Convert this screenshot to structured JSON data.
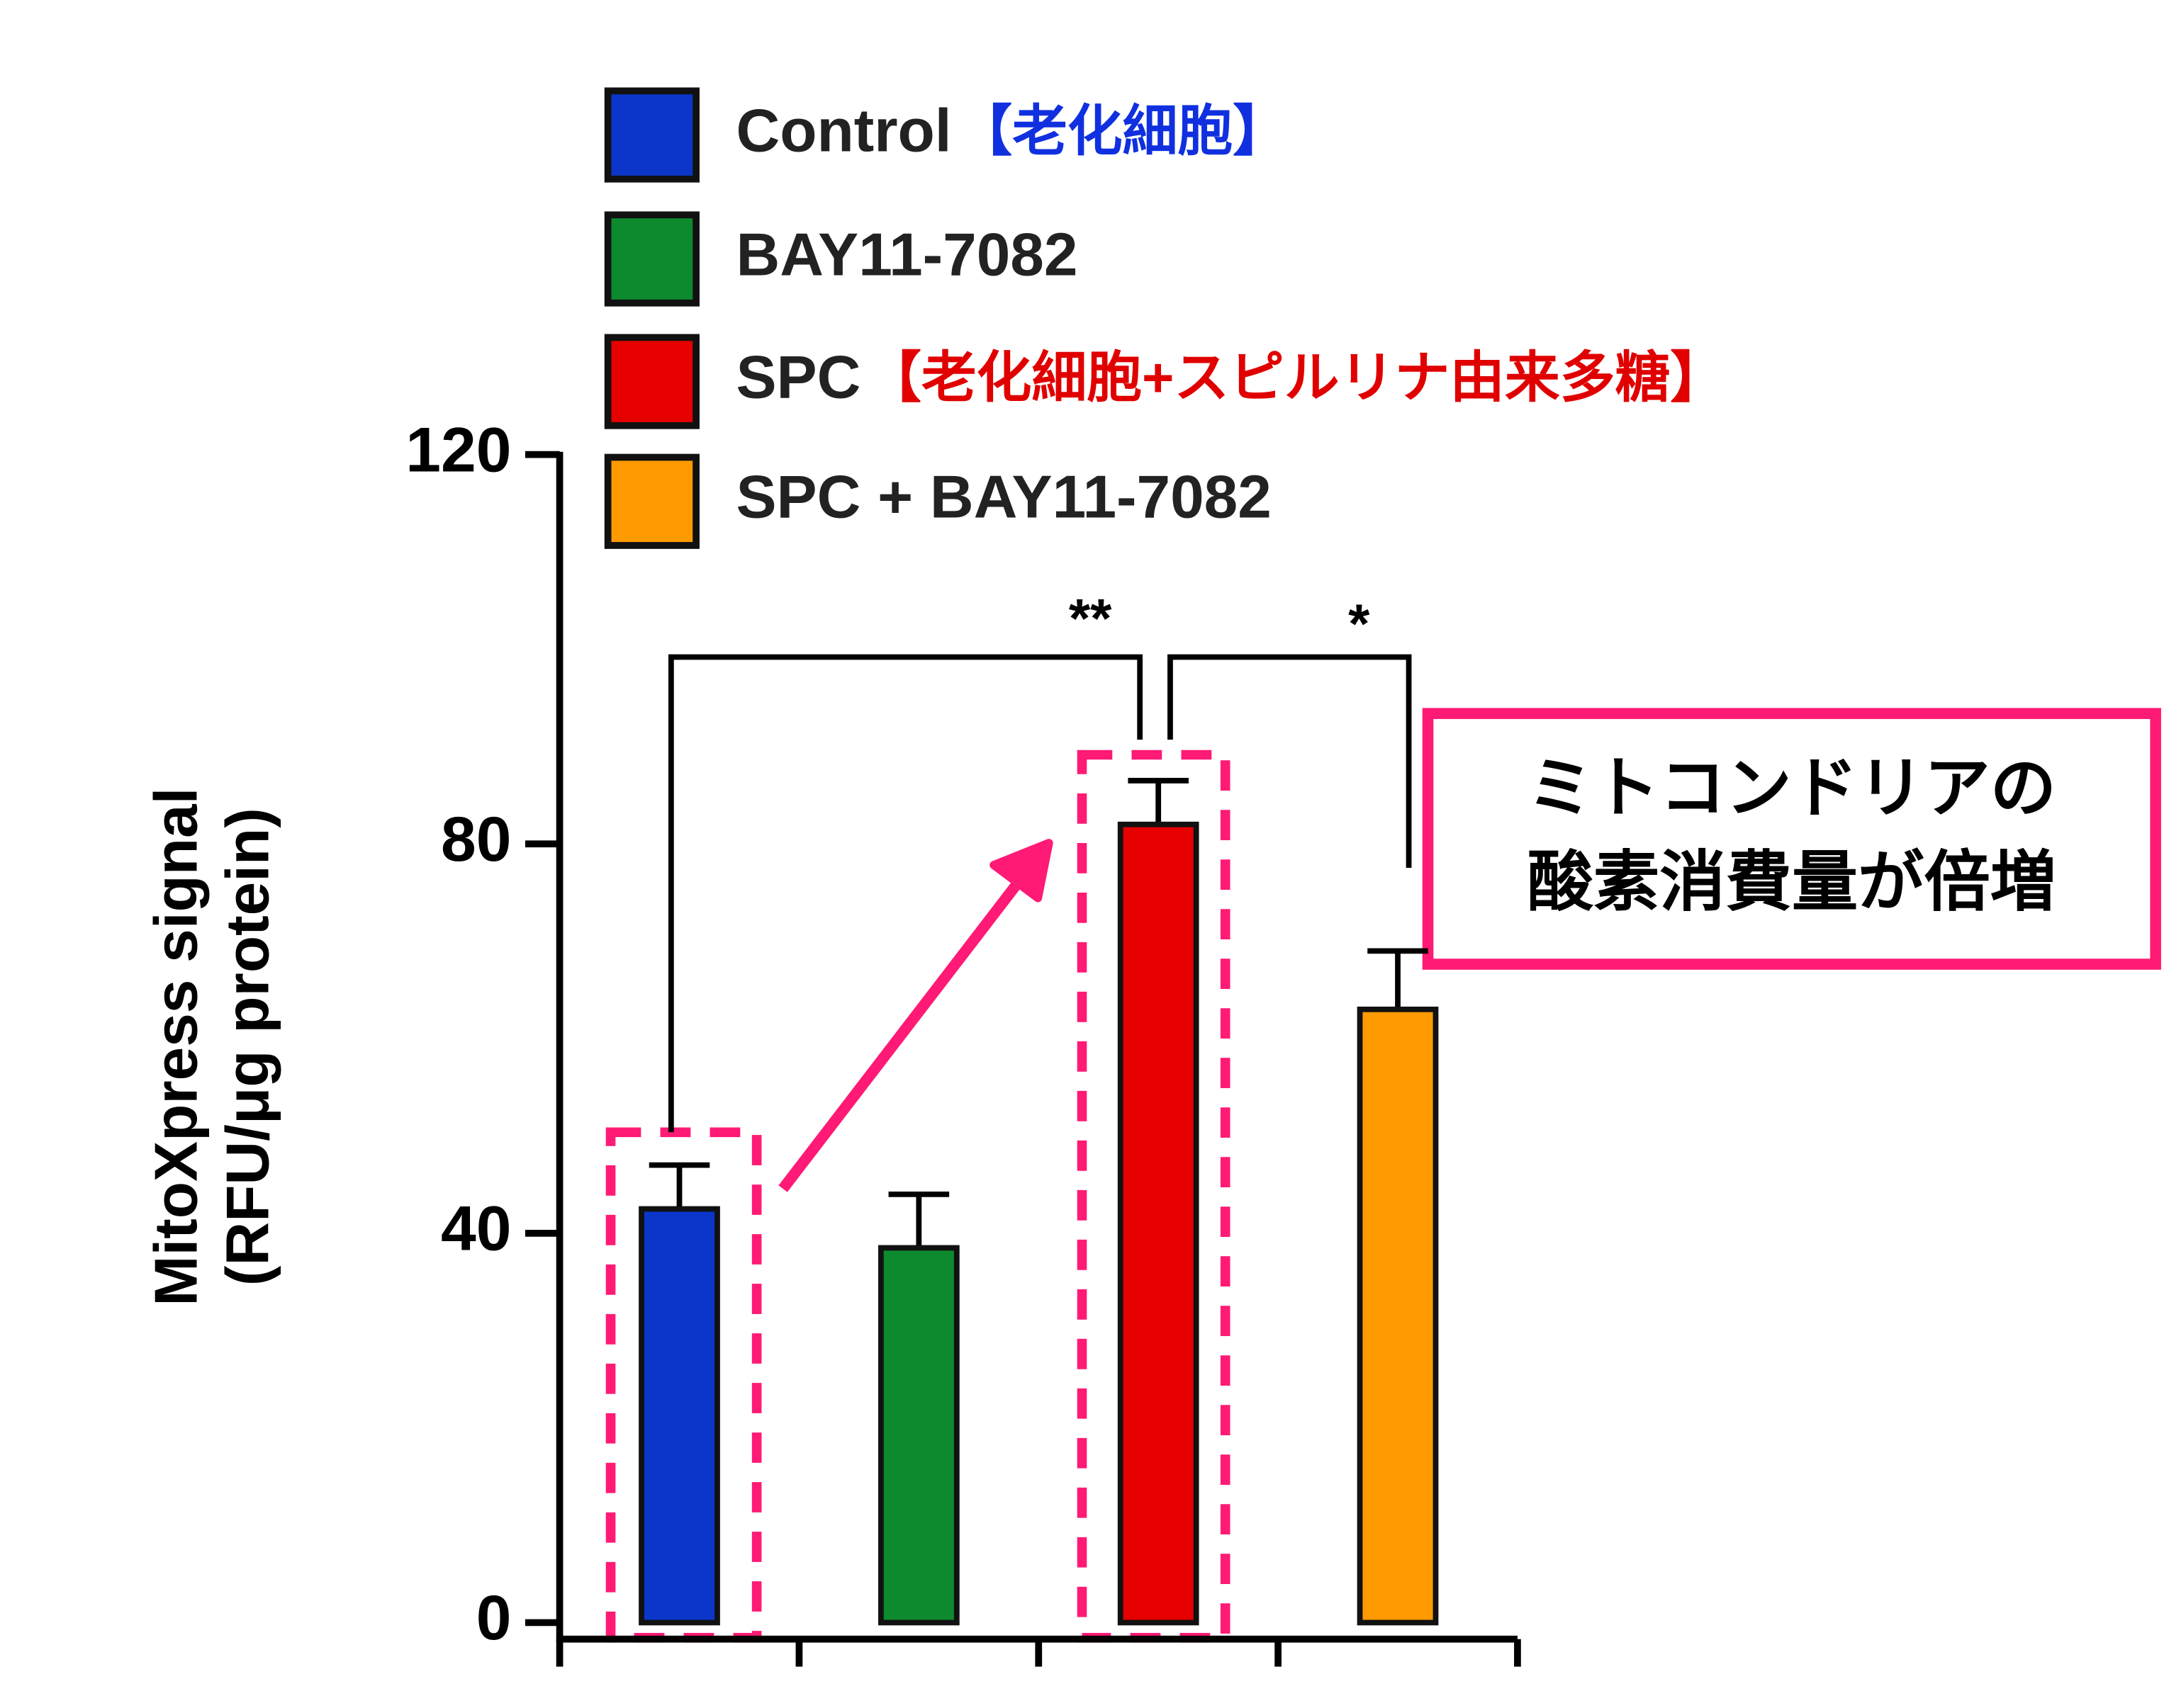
{
  "chart_data": {
    "type": "bar",
    "y_label": [
      "MitoXpress signal",
      "(RFU/μg protein)"
    ],
    "categories": [
      null,
      null,
      null,
      null
    ],
    "values": [
      42.5,
      38.5,
      82,
      63
    ],
    "errors": [
      4.5,
      5.5,
      4.5,
      6
    ],
    "colors": [
      "#0b36c9",
      "#0d8a2e",
      "#e60000",
      "#ff9a00"
    ],
    "legend": [
      {
        "label": "Control",
        "note": "【老化細胞】",
        "note_color": "#1030e0"
      },
      {
        "label": "BAY11-7082"
      },
      {
        "label": "SPC",
        "note": "【老化細胞+スピルリナ由来多糖】",
        "note_color": "#e00000"
      },
      {
        "label": "SPC + BAY11-7082"
      }
    ],
    "ylim": [
      0,
      120
    ],
    "yticks": [
      0,
      40,
      80,
      120
    ],
    "significance": [
      "**",
      "*"
    ],
    "callout": [
      "ミトコンドリアの",
      "酸素消費量が倍増"
    ]
  }
}
